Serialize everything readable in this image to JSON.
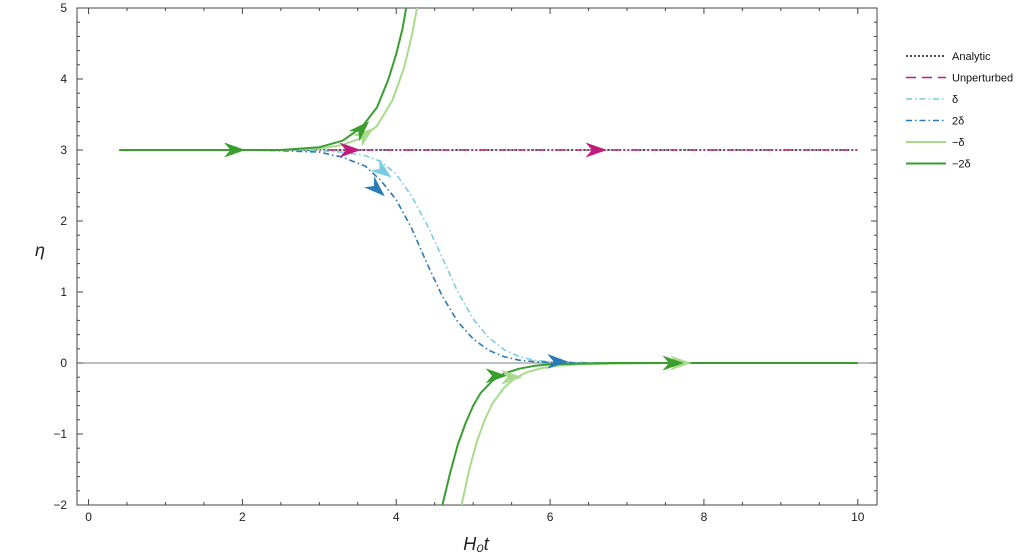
{
  "chart_data": {
    "type": "line",
    "title": "",
    "xlabel": "H₀t",
    "ylabel": "η",
    "xlim": [
      -0.15,
      10.25
    ],
    "ylim": [
      -2,
      5
    ],
    "xticks": [
      0,
      2,
      4,
      6,
      8,
      10
    ],
    "yticks": [
      -2,
      -1,
      0,
      1,
      2,
      3,
      4,
      5
    ],
    "grid": false,
    "zero_line": true,
    "legend_position": "right",
    "series": [
      {
        "name": "Analytic",
        "color": "#111111",
        "dash": "dotted",
        "x": [
          0.4,
          10
        ],
        "y": [
          3,
          3
        ]
      },
      {
        "name": "Unperturbed",
        "color": "#c01a7d",
        "dash": "dashdotdot",
        "x": [
          0.4,
          10
        ],
        "y": [
          3,
          3
        ],
        "arrows": [
          {
            "x": 3.4,
            "y": 3
          },
          {
            "x": 6.6,
            "y": 3
          }
        ]
      },
      {
        "name": "δ",
        "color": "#79cce8",
        "dash": "dashdot",
        "x": [
          2.0,
          2.5,
          3.0,
          3.3,
          3.6,
          3.8,
          4.0,
          4.2,
          4.4,
          4.6,
          4.8,
          5.0,
          5.2,
          5.4,
          5.6,
          5.8,
          6.0,
          6.5,
          7.0,
          8.0,
          10.0
        ],
        "y": [
          3.0,
          3.0,
          2.99,
          2.97,
          2.92,
          2.84,
          2.66,
          2.35,
          1.95,
          1.48,
          1.0,
          0.62,
          0.36,
          0.19,
          0.09,
          0.04,
          0.02,
          0.005,
          0.0,
          0.0,
          0.0
        ],
        "arrows": [
          {
            "x": 3.83,
            "y": 2.7
          }
        ]
      },
      {
        "name": "2δ",
        "color": "#2a7ab8",
        "dash": "dashdot",
        "x": [
          2.0,
          2.5,
          3.0,
          3.3,
          3.6,
          3.8,
          4.0,
          4.2,
          4.4,
          4.6,
          4.8,
          5.0,
          5.2,
          5.4,
          5.6,
          5.8,
          6.0,
          6.5,
          7.0,
          8.0,
          10.0
        ],
        "y": [
          3.0,
          2.99,
          2.97,
          2.9,
          2.77,
          2.57,
          2.3,
          1.9,
          1.4,
          0.94,
          0.58,
          0.34,
          0.18,
          0.09,
          0.04,
          0.02,
          0.01,
          0.0,
          0.0,
          0.0,
          0.0
        ],
        "arrows": [
          {
            "x": 3.75,
            "y": 2.45
          },
          {
            "x": 6.1,
            "y": 0.02
          }
        ]
      },
      {
        "name": "−δ",
        "color": "#a8dc8c",
        "dash": "solid",
        "x": [
          0.4,
          2.0,
          2.5,
          3.0,
          3.3,
          3.55,
          3.75,
          3.95,
          4.1,
          4.2,
          4.27
        ],
        "y": [
          3.0,
          3.0,
          3.0,
          3.02,
          3.07,
          3.17,
          3.34,
          3.7,
          4.15,
          4.6,
          5.0
        ],
        "arrows": [
          {
            "x": 3.6,
            "y": 3.22
          },
          {
            "x": 5.5,
            "y": -0.2
          },
          {
            "x": 7.7,
            "y": 0.0
          }
        ]
      },
      {
        "name": "−2δ",
        "color": "#3a9e2f",
        "dash": "solid",
        "x": [
          0.4,
          1.8,
          2.5,
          3.0,
          3.3,
          3.55,
          3.75,
          3.9,
          4.0,
          4.08,
          4.13
        ],
        "y": [
          3.0,
          3.0,
          3.0,
          3.04,
          3.13,
          3.32,
          3.6,
          4.0,
          4.35,
          4.7,
          5.0
        ],
        "arrows": [
          {
            "x": 1.9,
            "y": 3.0
          },
          {
            "x": 3.55,
            "y": 3.3
          },
          {
            "x": 5.3,
            "y": -0.18
          },
          {
            "x": 7.6,
            "y": 0.0
          }
        ]
      },
      {
        "name": "",
        "color": "#a8dc8c",
        "dash": "solid",
        "x": [
          4.85,
          4.95,
          5.05,
          5.15,
          5.25,
          5.4,
          5.55,
          5.7,
          5.9,
          6.1,
          6.4,
          6.8,
          7.5,
          8.5,
          10.0
        ],
        "y": [
          -2.0,
          -1.5,
          -1.1,
          -0.8,
          -0.57,
          -0.35,
          -0.21,
          -0.13,
          -0.07,
          -0.04,
          -0.02,
          -0.01,
          0.0,
          0.0,
          0.0
        ]
      },
      {
        "name": "",
        "color": "#3a9e2f",
        "dash": "solid",
        "x": [
          4.6,
          4.7,
          4.8,
          4.9,
          5.0,
          5.1,
          5.25,
          5.4,
          5.6,
          5.8,
          6.0,
          6.3,
          6.8,
          7.5,
          8.5,
          10.0
        ],
        "y": [
          -2.0,
          -1.55,
          -1.15,
          -0.85,
          -0.6,
          -0.42,
          -0.25,
          -0.15,
          -0.08,
          -0.04,
          -0.02,
          -0.01,
          0.0,
          0.0,
          0.0,
          0.0
        ]
      }
    ]
  }
}
